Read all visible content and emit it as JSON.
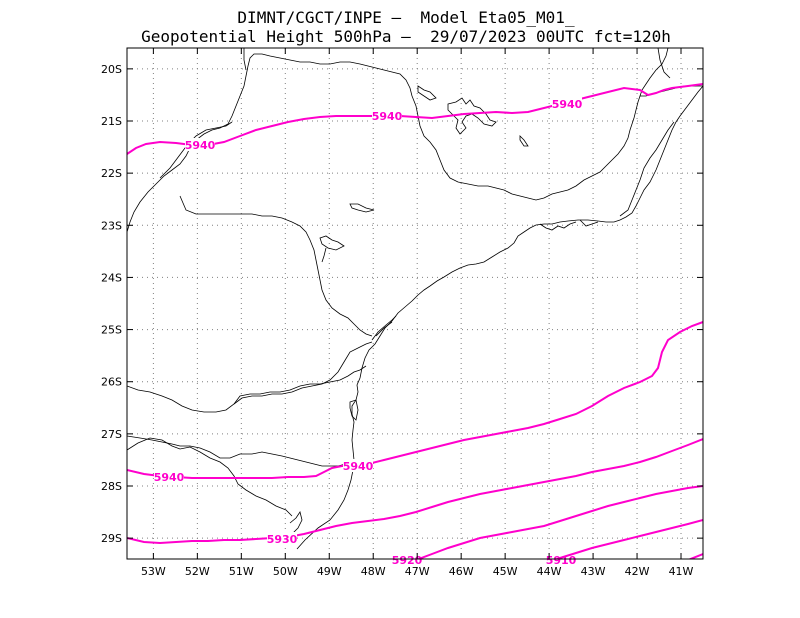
{
  "title": {
    "line1": "DIMNT/CGCT/INPE –  Model Eta05_M01_",
    "line2": "Geopotential Height 500hPa –  29/07/2023 00UTC fct=120h"
  },
  "colors": {
    "contour": "#ff00cc",
    "coast": "#000000",
    "grid": "#808080",
    "frame": "#000000"
  },
  "map": {
    "lon_range": [
      -53.6,
      -40.5
    ],
    "lat_range": [
      -29.4,
      -19.6
    ],
    "lon_ticks": [
      "53W",
      "52W",
      "51W",
      "50W",
      "49W",
      "48W",
      "47W",
      "46W",
      "45W",
      "44W",
      "43W",
      "42W",
      "41W"
    ],
    "lat_ticks": [
      "20S",
      "21S",
      "22S",
      "23S",
      "24S",
      "25S",
      "26S",
      "27S",
      "28S",
      "29S"
    ],
    "contour_labels": [
      "5940",
      "5940",
      "5940",
      "5940",
      "5940",
      "5930",
      "5920",
      "5910"
    ]
  }
}
